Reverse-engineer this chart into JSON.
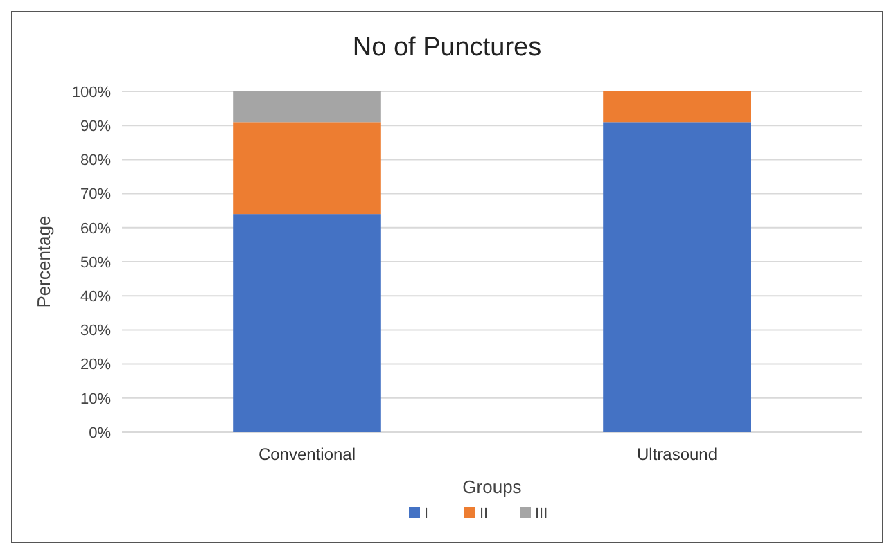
{
  "chart_data": {
    "type": "bar",
    "title": "No of Punctures",
    "xlabel": "Groups",
    "ylabel": "Percentage",
    "categories": [
      "Conventional",
      "Ultrasound"
    ],
    "stacked": true,
    "series": [
      {
        "name": "I",
        "color": "#4472c4",
        "values": [
          64,
          91
        ]
      },
      {
        "name": "II",
        "color": "#ed7d31",
        "values": [
          27,
          9
        ]
      },
      {
        "name": "III",
        "color": "#a5a5a5",
        "values": [
          9,
          null
        ]
      }
    ],
    "ylim": [
      0,
      100
    ],
    "yticks": [
      {
        "value": 0,
        "label": "0%"
      },
      {
        "value": 10,
        "label": "10%"
      },
      {
        "value": 20,
        "label": "20%"
      },
      {
        "value": 30,
        "label": "30%"
      },
      {
        "value": 40,
        "label": "40%"
      },
      {
        "value": 50,
        "label": "50%"
      },
      {
        "value": 60,
        "label": "60%"
      },
      {
        "value": 70,
        "label": "70%"
      },
      {
        "value": 80,
        "label": "80%"
      },
      {
        "value": 90,
        "label": "90%"
      },
      {
        "value": 100,
        "label": "100%"
      }
    ],
    "grid": "y",
    "legend": "bottom"
  }
}
